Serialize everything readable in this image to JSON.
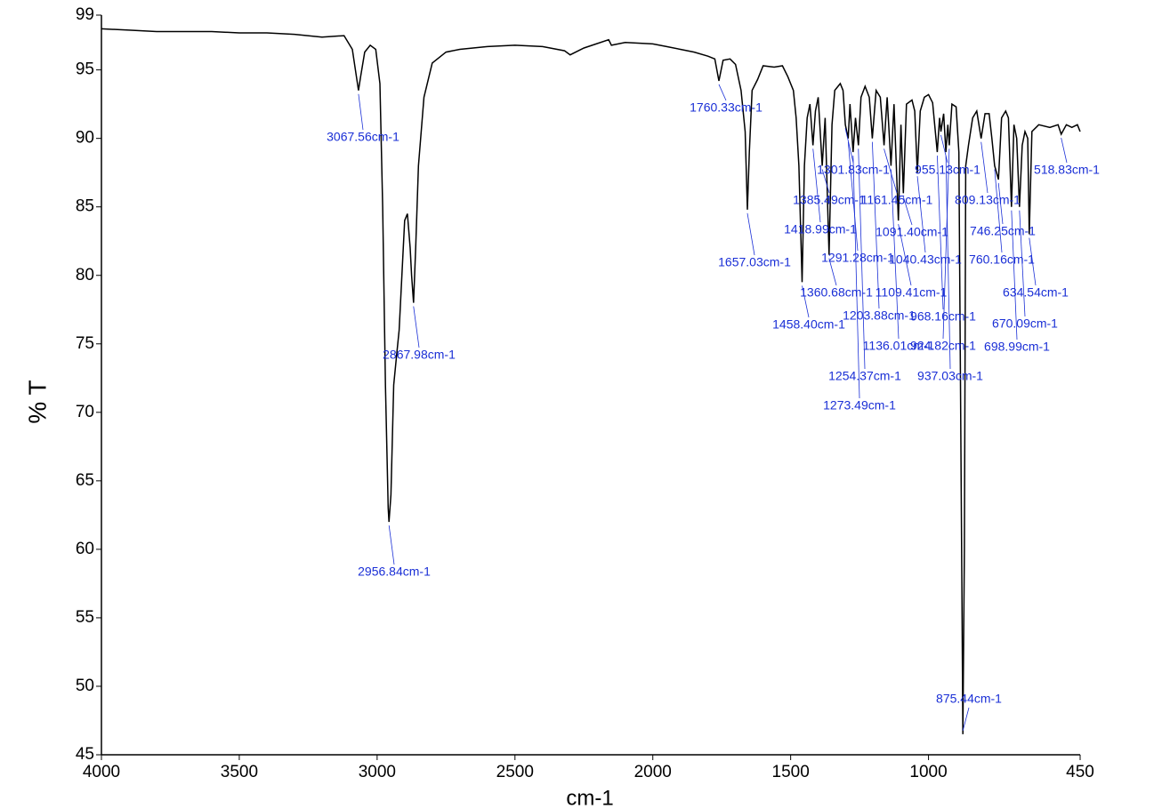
{
  "chart_data": {
    "type": "line",
    "xlabel": "cm-1",
    "ylabel": "% T",
    "xlim": [
      4000,
      450
    ],
    "ylim": [
      45,
      99
    ],
    "xticks": [
      4000,
      3500,
      3000,
      2500,
      2000,
      1500,
      1000,
      450
    ],
    "yticks": [
      45,
      50,
      55,
      60,
      65,
      70,
      75,
      80,
      85,
      90,
      95,
      99
    ],
    "grid": false,
    "series": [
      {
        "color": "#000000",
        "x": [
          4000,
          3900,
          3800,
          3700,
          3600,
          3500,
          3400,
          3300,
          3200,
          3120,
          3090,
          3075,
          3067.56,
          3060,
          3045,
          3025,
          3005,
          2990,
          2980,
          2970,
          2960,
          2956.84,
          2950,
          2940,
          2930,
          2920,
          2910,
          2900,
          2890,
          2880,
          2875,
          2867.98,
          2860,
          2850,
          2830,
          2800,
          2750,
          2700,
          2600,
          2500,
          2400,
          2320,
          2300,
          2250,
          2160,
          2150,
          2100,
          2000,
          1950,
          1900,
          1850,
          1800,
          1775,
          1760.33,
          1745,
          1720,
          1700,
          1680,
          1665,
          1657.03,
          1650,
          1640,
          1620,
          1600,
          1560,
          1530,
          1510,
          1490,
          1480,
          1470,
          1458.4,
          1450,
          1440,
          1430,
          1418.99,
          1410,
          1400,
          1385.49,
          1375,
          1360.68,
          1350,
          1340,
          1320,
          1310,
          1301.83,
          1291.28,
          1285,
          1273.49,
          1265,
          1254.37,
          1245,
          1230,
          1215,
          1203.88,
          1190,
          1175,
          1161.45,
          1150,
          1136.01,
          1125,
          1109.41,
          1100,
          1091.4,
          1080,
          1060,
          1050,
          1040.43,
          1030,
          1015,
          1000,
          985,
          968.16,
          960,
          955.13,
          945,
          937.03,
          930,
          924.82,
          915,
          900,
          890,
          880,
          875.44,
          870,
          865,
          855,
          840,
          825,
          809.13,
          795,
          780,
          770,
          760.16,
          746.25,
          735,
          720,
          710,
          698.99,
          690,
          680,
          670.09,
          660,
          650,
          640,
          634.54,
          625,
          600,
          560,
          530,
          518.83,
          500,
          480,
          460,
          450
        ],
        "y": [
          98.0,
          97.9,
          97.8,
          97.8,
          97.8,
          97.7,
          97.7,
          97.6,
          97.4,
          97.5,
          96.5,
          94.5,
          93.5,
          94.5,
          96.3,
          96.8,
          96.5,
          94,
          85,
          72,
          63,
          62,
          64,
          72,
          74,
          76,
          80,
          84,
          84.5,
          82,
          80,
          78,
          82,
          88,
          93,
          95.5,
          96.3,
          96.5,
          96.7,
          96.8,
          96.7,
          96.4,
          96.1,
          96.6,
          97.2,
          96.8,
          97,
          96.9,
          96.7,
          96.5,
          96.3,
          96.0,
          95.8,
          94.2,
          95.7,
          95.8,
          95.4,
          93.5,
          90.5,
          84.8,
          89,
          93.5,
          94.3,
          95.3,
          95.2,
          95.3,
          94.5,
          93.5,
          91.5,
          88,
          79.5,
          88,
          91.5,
          92.5,
          89.5,
          92,
          93,
          88,
          91.5,
          81.5,
          91,
          93.5,
          94,
          93.5,
          91,
          90,
          92.5,
          89,
          91.5,
          89.5,
          93,
          93.8,
          93,
          90,
          93.5,
          93,
          89.5,
          93,
          88,
          92.5,
          84,
          91,
          86,
          92.5,
          92.8,
          92,
          87.5,
          92,
          93,
          93.2,
          92.6,
          89,
          91.5,
          90.5,
          91.8,
          89,
          91,
          89.5,
          92.5,
          92.3,
          89,
          60,
          46.5,
          60,
          88,
          89.5,
          91.5,
          92,
          90,
          91.8,
          91.8,
          90,
          88,
          87,
          91.5,
          92,
          91.5,
          85,
          91,
          90,
          85,
          89.5,
          90.5,
          90,
          83,
          90.5,
          91,
          90.8,
          91,
          90.3,
          91,
          90.8,
          91,
          90.5
        ]
      }
    ],
    "annotations": [
      {
        "text": "3067.56cm-1",
        "x": 3067.56,
        "y": 93.5
      },
      {
        "text": "2956.84cm-1",
        "x": 2956.84,
        "y": 62
      },
      {
        "text": "2867.98cm-1",
        "x": 2867.98,
        "y": 78
      },
      {
        "text": "1760.33cm-1",
        "x": 1760.33,
        "y": 94.2
      },
      {
        "text": "1657.03cm-1",
        "x": 1657.03,
        "y": 84.8
      },
      {
        "text": "1458.40cm-1",
        "x": 1458.4,
        "y": 79.5
      },
      {
        "text": "1418.99cm-1",
        "x": 1418.99,
        "y": 89.5
      },
      {
        "text": "1385.49cm-1",
        "x": 1385.49,
        "y": 88
      },
      {
        "text": "1360.68cm-1",
        "x": 1360.68,
        "y": 81.5
      },
      {
        "text": "1301.83cm-1",
        "x": 1301.83,
        "y": 91
      },
      {
        "text": "1291.28cm-1",
        "x": 1291.28,
        "y": 90
      },
      {
        "text": "1273.49cm-1",
        "x": 1273.49,
        "y": 89
      },
      {
        "text": "1254.37cm-1",
        "x": 1254.37,
        "y": 89.5
      },
      {
        "text": "1203.88cm-1",
        "x": 1203.88,
        "y": 90
      },
      {
        "text": "1161.45cm-1",
        "x": 1161.45,
        "y": 89.5
      },
      {
        "text": "1136.01cm-1",
        "x": 1136.01,
        "y": 88
      },
      {
        "text": "1109.41cm-1",
        "x": 1109.41,
        "y": 84
      },
      {
        "text": "1091.40cm-1",
        "x": 1091.4,
        "y": 86
      },
      {
        "text": "1040.43cm-1",
        "x": 1040.43,
        "y": 87.5
      },
      {
        "text": "968.16cm-1",
        "x": 968.16,
        "y": 89
      },
      {
        "text": "955.13cm-1",
        "x": 955.13,
        "y": 90.5
      },
      {
        "text": "937.03cm-1",
        "x": 937.03,
        "y": 89
      },
      {
        "text": "924.82cm-1",
        "x": 924.82,
        "y": 89.5
      },
      {
        "text": "875.44cm-1",
        "x": 875.44,
        "y": 46.5
      },
      {
        "text": "809.13cm-1",
        "x": 809.13,
        "y": 90
      },
      {
        "text": "760.16cm-1",
        "x": 760.16,
        "y": 88
      },
      {
        "text": "746.25cm-1",
        "x": 746.25,
        "y": 87
      },
      {
        "text": "698.99cm-1",
        "x": 698.99,
        "y": 85
      },
      {
        "text": "670.09cm-1",
        "x": 670.09,
        "y": 85
      },
      {
        "text": "634.54cm-1",
        "x": 634.54,
        "y": 83
      },
      {
        "text": "518.83cm-1",
        "x": 518.83,
        "y": 90.3
      }
    ]
  }
}
